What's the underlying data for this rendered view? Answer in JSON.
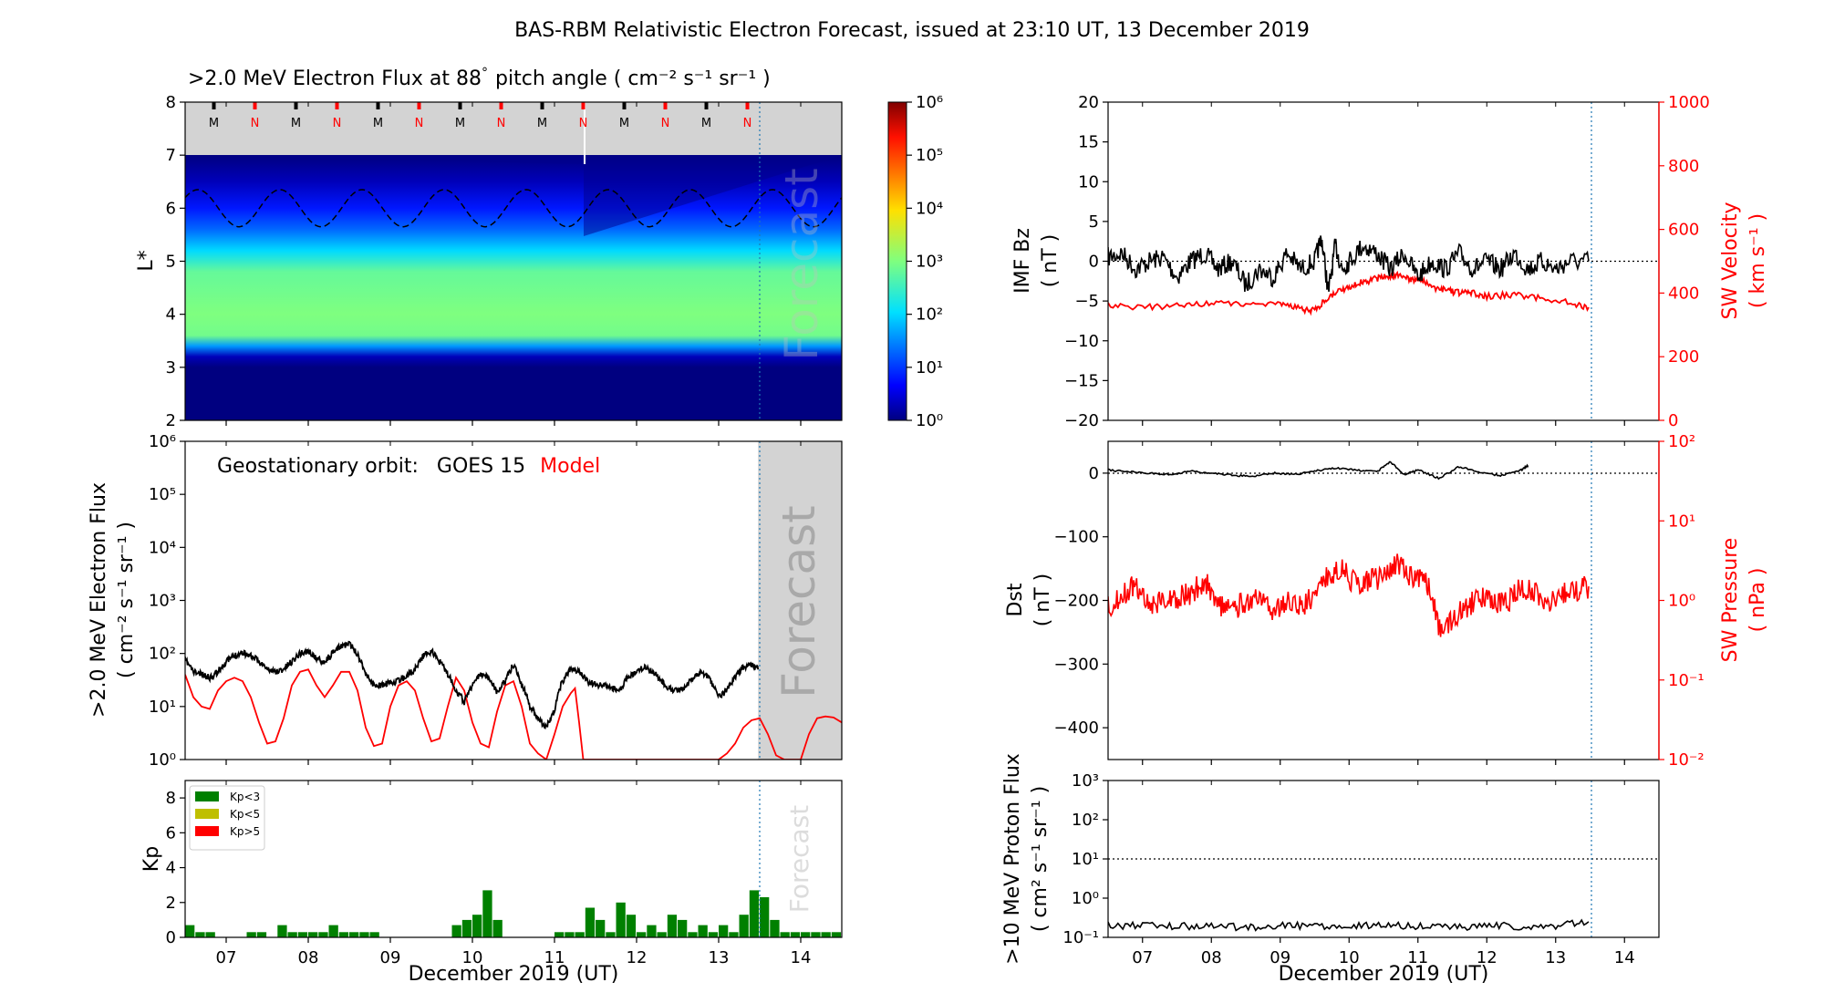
{
  "title": "BAS-RBM Relativistic Electron Forecast, issued at 23:10 UT, 13 December 2019",
  "colors": {
    "observed": "#000000",
    "model": "#ff0000",
    "kp_low": "#008000",
    "kp_mid": "#bfbf00",
    "kp_high": "#ff0000",
    "forecast_shade": "#d3d3d3",
    "forecast_line": "#1f77b4"
  },
  "time_axis": {
    "label": "December 2019 (UT)",
    "ticks": [
      "07",
      "08",
      "09",
      "10",
      "11",
      "12",
      "13",
      "14"
    ],
    "range_days": [
      6.5,
      14.5
    ],
    "forecast_start_day": 13.48
  },
  "chart_data": [
    {
      "id": "lstar",
      "type": "heatmap",
      "title": ">2.0 MeV Electron Flux at 88",
      "title_degree": "°",
      "title_units": "pitch angle ( cm⁻² s⁻¹ sr⁻¹ )",
      "ylabel": "L*",
      "ylim": [
        2,
        8
      ],
      "yticks": [
        "2",
        "3",
        "4",
        "5",
        "6",
        "7",
        "8"
      ],
      "colorbar": {
        "ticks": [
          "10⁰",
          "10¹",
          "10²",
          "10³",
          "10⁴",
          "10⁵",
          "10⁶"
        ],
        "range_log10": [
          0,
          6
        ]
      },
      "forecast_label": "Forecast",
      "mlt_markers": [
        "M",
        "N",
        "M",
        "N",
        "M",
        "N",
        "M",
        "N",
        "M",
        "N",
        "M",
        "N",
        "M",
        "N"
      ],
      "geo_orbit_L": {
        "mean": 6.0,
        "amplitude": 0.35
      },
      "outer_boundary_L": 7.0,
      "flux_profile_log10": [
        [
          2.0,
          0.0
        ],
        [
          3.0,
          0.0
        ],
        [
          3.2,
          0.3
        ],
        [
          3.4,
          1.6
        ],
        [
          3.6,
          2.9
        ],
        [
          4.0,
          3.0
        ],
        [
          4.8,
          2.8
        ],
        [
          5.2,
          2.0
        ],
        [
          5.6,
          1.3
        ],
        [
          6.0,
          0.8
        ],
        [
          6.5,
          0.3
        ],
        [
          7.0,
          0.0
        ]
      ]
    },
    {
      "id": "geo_flux",
      "type": "line",
      "legend_prefix": "Geostationary orbit:",
      "series": [
        {
          "name": "GOES 15",
          "color": "#000000",
          "x": [
            6.5,
            6.6,
            6.7,
            6.8,
            6.9,
            7.0,
            7.1,
            7.2,
            7.3,
            7.4,
            7.5,
            7.6,
            7.7,
            7.8,
            7.9,
            8.0,
            8.1,
            8.2,
            8.3,
            8.4,
            8.5,
            8.6,
            8.7,
            8.8,
            8.9,
            9.0,
            9.1,
            9.2,
            9.3,
            9.4,
            9.5,
            9.6,
            9.7,
            9.8,
            9.9,
            10.0,
            10.1,
            10.2,
            10.3,
            10.4,
            10.5,
            10.6,
            10.7,
            10.8,
            10.9,
            11.0,
            11.1,
            11.2,
            11.3,
            11.4,
            11.5,
            11.6,
            11.7,
            11.8,
            11.9,
            12.0,
            12.1,
            12.2,
            12.3,
            12.4,
            12.5,
            12.6,
            12.7,
            12.8,
            12.9,
            13.0,
            13.1,
            13.2,
            13.3,
            13.4,
            13.48
          ],
          "y": [
            75,
            45,
            40,
            35,
            45,
            70,
            90,
            105,
            90,
            70,
            50,
            45,
            50,
            70,
            100,
            110,
            80,
            70,
            100,
            140,
            150,
            95,
            40,
            25,
            25,
            28,
            30,
            38,
            50,
            90,
            110,
            70,
            40,
            20,
            12,
            25,
            40,
            35,
            18,
            30,
            60,
            25,
            10,
            6,
            4,
            8,
            30,
            50,
            45,
            30,
            25,
            25,
            22,
            20,
            35,
            45,
            55,
            45,
            30,
            22,
            20,
            25,
            35,
            45,
            30,
            15,
            20,
            35,
            55,
            60,
            50
          ]
        },
        {
          "name": "Model",
          "color": "#ff0000",
          "x": [
            6.5,
            6.6,
            6.7,
            6.8,
            6.9,
            7.0,
            7.1,
            7.2,
            7.3,
            7.4,
            7.5,
            7.6,
            7.7,
            7.8,
            7.9,
            8.0,
            8.1,
            8.2,
            8.3,
            8.4,
            8.5,
            8.6,
            8.7,
            8.8,
            8.9,
            9.0,
            9.1,
            9.2,
            9.3,
            9.4,
            9.5,
            9.6,
            9.7,
            9.8,
            9.9,
            10.0,
            10.1,
            10.2,
            10.3,
            10.4,
            10.5,
            10.6,
            10.7,
            10.8,
            10.9,
            11.0,
            11.1,
            11.2,
            11.25,
            11.3,
            11.35,
            11.4,
            11.8,
            12.0,
            12.2,
            12.3,
            12.4,
            12.5,
            12.55,
            12.6,
            13.0,
            13.1,
            13.2,
            13.3,
            13.4,
            13.5,
            13.6,
            13.7,
            13.8,
            13.9,
            14.0,
            14.1,
            14.2,
            14.3,
            14.4,
            14.5
          ],
          "y": [
            40,
            15,
            10,
            9,
            20,
            30,
            35,
            30,
            15,
            5,
            2,
            2.2,
            6,
            25,
            45,
            50,
            25,
            15,
            25,
            45,
            45,
            20,
            4,
            1.8,
            2,
            10,
            25,
            30,
            20,
            6,
            2.2,
            2.5,
            10,
            35,
            20,
            5,
            2,
            1.7,
            8,
            25,
            30,
            10,
            2,
            1.3,
            1,
            3,
            10,
            18,
            22,
            5,
            1,
            1,
            1,
            1,
            1,
            1,
            1,
            1,
            1,
            1,
            1,
            1.3,
            2,
            4,
            5.5,
            6,
            3,
            1.2,
            1,
            1,
            1,
            3,
            6,
            6.5,
            6.2,
            5
          ]
        }
      ],
      "ylim_log10": [
        0,
        6
      ],
      "yticks": [
        "10⁰",
        "10¹",
        "10²",
        "10³",
        "10⁴",
        "10⁵",
        "10⁶"
      ],
      "ylabel_line1": ">2.0 MeV Electron Flux",
      "ylabel_line2": "( cm⁻² s⁻¹ sr⁻¹ )",
      "forecast_label": "Forecast"
    },
    {
      "id": "kp",
      "type": "bar",
      "ylabel": "Kp",
      "ylim": [
        0,
        9
      ],
      "yticks": [
        "0",
        "2",
        "4",
        "6",
        "8"
      ],
      "legend": [
        "Kp<3",
        "Kp<5",
        "Kp>5"
      ],
      "forecast_label": "Forecast",
      "x_start_day": 6.5,
      "bar_width_days": 0.125,
      "values": [
        0.7,
        0.3,
        0.3,
        0,
        0,
        0,
        0.3,
        0.3,
        0,
        0.7,
        0.3,
        0.3,
        0.3,
        0.3,
        0.7,
        0.3,
        0.3,
        0.3,
        0.3,
        0,
        0,
        0,
        0,
        0,
        0,
        0,
        0.7,
        1.0,
        1.3,
        2.7,
        1.0,
        0,
        0,
        0,
        0,
        0,
        0.3,
        0.3,
        0.3,
        1.7,
        1.0,
        0.3,
        2.0,
        1.3,
        0.3,
        0.7,
        0.3,
        1.3,
        1.0,
        0.3,
        0.7,
        0.3,
        0.7,
        0.3,
        1.3,
        2.7,
        2.3,
        1.0,
        0.3,
        0.3,
        0.3,
        0.3,
        0.3,
        0.3,
        1.7,
        0.7,
        1.0,
        0.3,
        1.7,
        1.0,
        0.3,
        0.7,
        0.3,
        0.3,
        0.3,
        0.3,
        0.3,
        1.7,
        1.3,
        0.3,
        2.0,
        1.3,
        0.3,
        1.7,
        1.0,
        0.3,
        0.3,
        0.3,
        0.3,
        0.3,
        0.7,
        0.3,
        0.3,
        0.3,
        0.3,
        0.3,
        0.3,
        0.3,
        0.3,
        0.3,
        0.3,
        0.3,
        0.3,
        0.3
      ]
    },
    {
      "id": "imf_sw",
      "type": "line",
      "left_ylabel_line1": "IMF Bz",
      "left_ylabel_line2": "( nT )",
      "right_ylabel_line1": "SW Velocity",
      "right_ylabel_line2": "( km s⁻¹ )",
      "left_ylim": [
        -20,
        20
      ],
      "left_yticks": [
        "−20",
        "−15",
        "−10",
        "−5",
        "0",
        "5",
        "10",
        "15",
        "20"
      ],
      "right_ylim": [
        0,
        1000
      ],
      "right_yticks": [
        "0",
        "200",
        "400",
        "600",
        "800",
        "1000"
      ],
      "series": [
        {
          "name": "IMF Bz",
          "axis": "left",
          "color": "#000000",
          "x": [
            6.5,
            6.7,
            6.9,
            7.1,
            7.3,
            7.5,
            7.7,
            7.9,
            8.1,
            8.3,
            8.5,
            8.7,
            8.9,
            9.1,
            9.3,
            9.5,
            9.6,
            9.7,
            9.8,
            9.9,
            10.0,
            10.2,
            10.4,
            10.6,
            10.8,
            11.0,
            11.2,
            11.4,
            11.6,
            11.8,
            12.0,
            12.2,
            12.4,
            12.6,
            12.8,
            13.0,
            13.2,
            13.48
          ],
          "y": [
            0.5,
            1,
            -1,
            0,
            0.5,
            -2,
            0,
            1,
            -1,
            0,
            -3,
            -1,
            -2,
            1,
            -1,
            0,
            3,
            -4,
            2,
            -1,
            0,
            2,
            1,
            -1,
            1,
            -2,
            0,
            -1,
            1,
            -1,
            0,
            -1,
            1,
            -1,
            0,
            -1,
            0,
            0
          ]
        },
        {
          "name": "SW Velocity",
          "axis": "right",
          "color": "#ff0000",
          "x": [
            6.5,
            7.0,
            7.5,
            8.0,
            8.5,
            9.0,
            9.3,
            9.5,
            9.7,
            9.9,
            10.1,
            10.3,
            10.5,
            10.7,
            10.9,
            11.0,
            11.2,
            11.4,
            11.6,
            11.8,
            12.0,
            12.4,
            12.8,
            13.2,
            13.48
          ],
          "y": [
            360,
            355,
            360,
            370,
            365,
            370,
            350,
            345,
            385,
            410,
            430,
            440,
            450,
            455,
            440,
            445,
            420,
            410,
            400,
            400,
            390,
            395,
            385,
            370,
            355
          ]
        }
      ]
    },
    {
      "id": "dst_pressure",
      "type": "line",
      "left_ylabel_line1": "Dst",
      "left_ylabel_line2": "( nT )",
      "right_ylabel_line1": "SW Pressure",
      "right_ylabel_line2": "( nPa )",
      "left_ylim": [
        -450,
        50
      ],
      "left_yticks": [
        "−400",
        "−300",
        "−200",
        "−100",
        "0"
      ],
      "right_ylim_log10": [
        -2,
        2
      ],
      "right_yticks": [
        "10⁻²",
        "10⁻¹",
        "10⁰",
        "10¹",
        "10²"
      ],
      "series": [
        {
          "name": "Dst",
          "axis": "left",
          "color": "#000000",
          "x": [
            6.5,
            6.8,
            7.1,
            7.4,
            7.7,
            8.0,
            8.3,
            8.6,
            8.9,
            9.2,
            9.5,
            9.8,
            10.1,
            10.4,
            10.6,
            10.8,
            11.0,
            11.3,
            11.6,
            11.9,
            12.2,
            12.5,
            12.6
          ],
          "y": [
            5,
            2,
            0,
            -2,
            3,
            0,
            -3,
            -5,
            0,
            -2,
            3,
            8,
            5,
            2,
            18,
            -2,
            5,
            -8,
            10,
            2,
            -4,
            5,
            12
          ]
        },
        {
          "name": "SW Pressure",
          "axis": "right",
          "color": "#ff0000",
          "x": [
            6.5,
            6.7,
            6.9,
            7.1,
            7.3,
            7.5,
            7.7,
            7.9,
            8.1,
            8.3,
            8.5,
            8.7,
            8.9,
            9.1,
            9.3,
            9.5,
            9.7,
            9.9,
            10.1,
            10.3,
            10.5,
            10.7,
            10.9,
            11.1,
            11.3,
            11.5,
            11.7,
            11.9,
            12.1,
            12.3,
            12.5,
            12.7,
            12.9,
            13.1,
            13.3,
            13.48
          ],
          "y": [
            0.8,
            1.2,
            1.5,
            0.9,
            1.0,
            1.1,
            1.2,
            1.8,
            0.9,
            0.7,
            1.0,
            1.0,
            0.7,
            1.0,
            0.8,
            1.2,
            2.0,
            2.5,
            1.5,
            1.8,
            2.0,
            2.8,
            2.0,
            1.8,
            0.4,
            0.6,
            0.8,
            1.1,
            0.9,
            0.9,
            1.5,
            1.2,
            1.0,
            1.2,
            1.3,
            1.5
          ]
        }
      ]
    },
    {
      "id": "proton",
      "type": "line",
      "ylabel_line1": ">10 MeV Proton Flux",
      "ylabel_line2": "( cm² s⁻¹ sr⁻¹ )",
      "ylim_log10": [
        -1,
        3
      ],
      "yticks": [
        "10⁻¹",
        "10⁰",
        "10¹",
        "10²",
        "10³"
      ],
      "threshold": 10,
      "series": [
        {
          "name": "GOES 15",
          "color": "#000000",
          "x": [
            6.5,
            7.0,
            7.5,
            8.0,
            8.5,
            9.0,
            9.5,
            10.0,
            10.5,
            11.0,
            11.5,
            12.0,
            12.5,
            13.0,
            13.48
          ],
          "y": [
            0.2,
            0.2,
            0.19,
            0.2,
            0.18,
            0.2,
            0.2,
            0.19,
            0.2,
            0.19,
            0.18,
            0.2,
            0.19,
            0.2,
            0.25
          ]
        }
      ]
    }
  ]
}
